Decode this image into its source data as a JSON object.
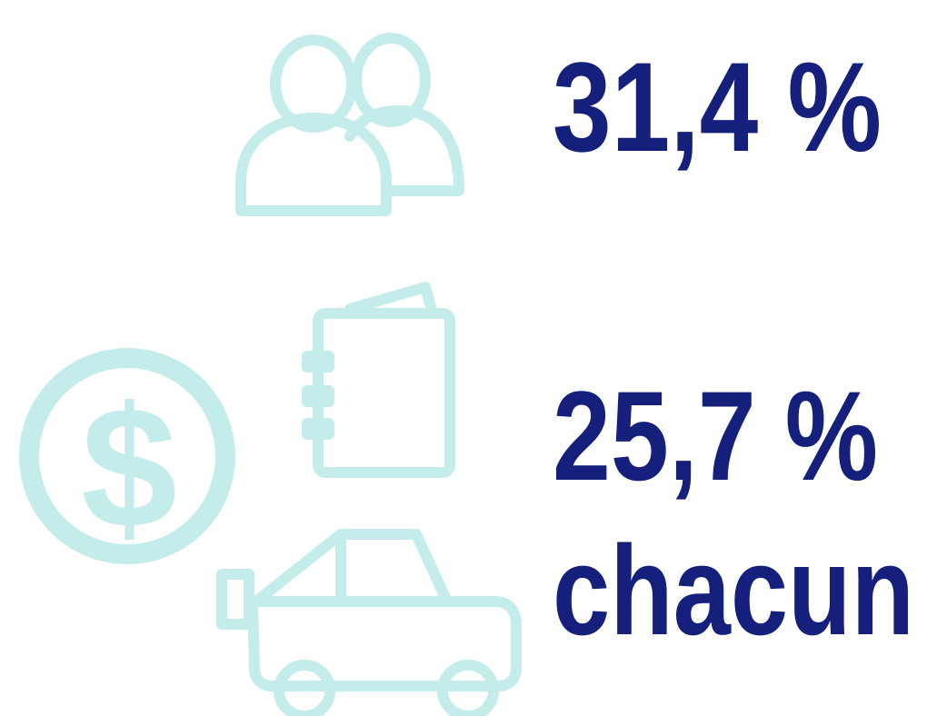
{
  "stats": [
    {
      "lines": [
        "31,4 %"
      ]
    },
    {
      "lines": [
        "25,7 %",
        "chacun"
      ]
    }
  ]
}
